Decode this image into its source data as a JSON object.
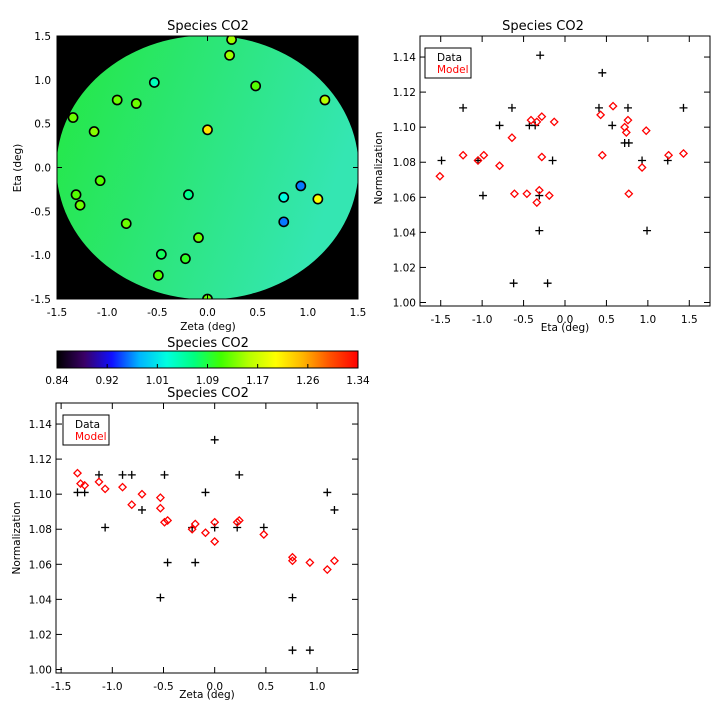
{
  "chart_data": [
    {
      "id": "map",
      "type": "scatter",
      "title": "Species CO2",
      "xlabel": "Zeta (deg)",
      "ylabel": "Eta (deg)",
      "xlim": [
        -1.5,
        1.5
      ],
      "ylim": [
        -1.5,
        1.5
      ],
      "xticks": [
        "-1.5",
        "-1.0",
        "-0.5",
        "0.0",
        "0.5",
        "1.0",
        "1.5"
      ],
      "yticks": [
        "-1.5",
        "-1.0",
        "-0.5",
        "0.0",
        "0.5",
        "1.0",
        "1.5"
      ],
      "background": "#000000",
      "field_colors": [
        "#24e840",
        "#2ce678",
        "#34e6b2"
      ],
      "points": [
        {
          "x": 0.24,
          "y": 1.46,
          "value": 1.15
        },
        {
          "x": 0.22,
          "y": 1.28,
          "value": 1.15
        },
        {
          "x": -0.53,
          "y": 0.97,
          "value": 1.04
        },
        {
          "x": 0.48,
          "y": 0.93,
          "value": 1.12
        },
        {
          "x": -0.9,
          "y": 0.77,
          "value": 1.13
        },
        {
          "x": -0.71,
          "y": 0.73,
          "value": 1.13
        },
        {
          "x": 1.17,
          "y": 0.77,
          "value": 1.16
        },
        {
          "x": -1.34,
          "y": 0.57,
          "value": 1.13
        },
        {
          "x": -1.13,
          "y": 0.41,
          "value": 1.14
        },
        {
          "x": 0.0,
          "y": 0.43,
          "value": 1.22
        },
        {
          "x": -1.07,
          "y": -0.15,
          "value": 1.12
        },
        {
          "x": -1.31,
          "y": -0.31,
          "value": 1.12
        },
        {
          "x": -1.27,
          "y": -0.43,
          "value": 1.13
        },
        {
          "x": -0.19,
          "y": -0.31,
          "value": 1.06
        },
        {
          "x": 0.93,
          "y": -0.21,
          "value": 0.96
        },
        {
          "x": 0.76,
          "y": -0.34,
          "value": 1.02
        },
        {
          "x": 1.1,
          "y": -0.36,
          "value": 1.2
        },
        {
          "x": -0.81,
          "y": -0.64,
          "value": 1.13
        },
        {
          "x": 0.76,
          "y": -0.62,
          "value": 0.96
        },
        {
          "x": -0.09,
          "y": -0.8,
          "value": 1.13
        },
        {
          "x": -0.46,
          "y": -0.99,
          "value": 1.08
        },
        {
          "x": -0.22,
          "y": -1.04,
          "value": 1.1
        },
        {
          "x": -0.49,
          "y": -1.23,
          "value": 1.12
        },
        {
          "x": 0.0,
          "y": -1.5,
          "value": 1.13
        }
      ]
    },
    {
      "id": "colorbar",
      "type": "colorbar",
      "title": "Species CO2",
      "ticks": [
        "0.84",
        "0.92",
        "1.01",
        "1.09",
        "1.17",
        "1.26",
        "1.34"
      ],
      "colors": [
        "#000000",
        "#3a0066",
        "#1010ff",
        "#00b4ff",
        "#00ffe0",
        "#00ff80",
        "#40ff00",
        "#b4ff00",
        "#ffff00",
        "#ffb400",
        "#ff5000",
        "#ff0000"
      ]
    },
    {
      "id": "eta",
      "type": "scatter",
      "title": "Species CO2",
      "xlabel": "Eta (deg)",
      "ylabel": "Normalization",
      "xlim": [
        -1.75,
        1.75
      ],
      "ylim": [
        0.998,
        1.152
      ],
      "xticks": [
        -1.5,
        -1.0,
        -0.5,
        0.0,
        0.5,
        1.0,
        1.5
      ],
      "xtick_labels": [
        "-1.5",
        "-1.0",
        "-0.5",
        "0.0",
        "0.5",
        "1.0",
        "1.5"
      ],
      "yticks": [
        1.0,
        1.02,
        1.04,
        1.06,
        1.08,
        1.1,
        1.12,
        1.14
      ],
      "ytick_labels": [
        "1.00",
        "1.02",
        "1.04",
        "1.06",
        "1.08",
        "1.10",
        "1.12",
        "1.14"
      ],
      "legend": [
        {
          "label": "Data",
          "color": "#000000"
        },
        {
          "label": "Model",
          "color": "#ff0000"
        }
      ],
      "series": [
        {
          "name": "Data",
          "marker": "plus",
          "color": "#000000",
          "points": [
            [
              -1.49,
              1.081
            ],
            [
              -1.23,
              1.111
            ],
            [
              -1.05,
              1.081
            ],
            [
              -0.99,
              1.061
            ],
            [
              -0.79,
              1.101
            ],
            [
              -0.64,
              1.111
            ],
            [
              -0.62,
              1.011
            ],
            [
              -0.43,
              1.101
            ],
            [
              -0.36,
              1.101
            ],
            [
              -0.31,
              1.061
            ],
            [
              -0.3,
              1.141
            ],
            [
              -0.31,
              1.041
            ],
            [
              -0.21,
              1.011
            ],
            [
              -0.15,
              1.081
            ],
            [
              0.41,
              1.111
            ],
            [
              0.45,
              1.131
            ],
            [
              0.57,
              1.101
            ],
            [
              0.76,
              1.111
            ],
            [
              0.72,
              1.091
            ],
            [
              0.77,
              1.091
            ],
            [
              0.93,
              1.081
            ],
            [
              0.99,
              1.041
            ],
            [
              1.24,
              1.081
            ],
            [
              1.43,
              1.111
            ]
          ]
        },
        {
          "name": "Model",
          "marker": "diamond",
          "color": "#ff0000",
          "points": [
            [
              -1.51,
              1.072
            ],
            [
              -1.23,
              1.084
            ],
            [
              -1.05,
              1.081
            ],
            [
              -0.98,
              1.084
            ],
            [
              -0.79,
              1.078
            ],
            [
              -0.64,
              1.094
            ],
            [
              -0.61,
              1.062
            ],
            [
              -0.46,
              1.062
            ],
            [
              -0.41,
              1.104
            ],
            [
              -0.34,
              1.103
            ],
            [
              -0.34,
              1.057
            ],
            [
              -0.31,
              1.064
            ],
            [
              -0.28,
              1.106
            ],
            [
              -0.28,
              1.083
            ],
            [
              -0.19,
              1.061
            ],
            [
              -0.13,
              1.103
            ],
            [
              0.43,
              1.107
            ],
            [
              0.45,
              1.084
            ],
            [
              0.58,
              1.112
            ],
            [
              0.72,
              1.1
            ],
            [
              0.76,
              1.104
            ],
            [
              0.74,
              1.097
            ],
            [
              0.77,
              1.062
            ],
            [
              0.93,
              1.077
            ],
            [
              0.98,
              1.098
            ],
            [
              1.25,
              1.084
            ],
            [
              1.43,
              1.085
            ]
          ]
        }
      ]
    },
    {
      "id": "zeta",
      "type": "scatter",
      "title": "Species CO2",
      "xlabel": "Zeta (deg)",
      "ylabel": "Normalization",
      "xlim": [
        -1.55,
        1.4
      ],
      "ylim": [
        0.998,
        1.152
      ],
      "xticks": [
        -1.5,
        -1.0,
        -0.5,
        0.0,
        0.5,
        1.0
      ],
      "xtick_labels": [
        "-1.5",
        "-1.0",
        "-0.5",
        "0.0",
        "0.5",
        "1.0"
      ],
      "yticks": [
        1.0,
        1.02,
        1.04,
        1.06,
        1.08,
        1.1,
        1.12,
        1.14
      ],
      "ytick_labels": [
        "1.00",
        "1.02",
        "1.04",
        "1.06",
        "1.08",
        "1.10",
        "1.12",
        "1.14"
      ],
      "legend": [
        {
          "label": "Data",
          "color": "#000000"
        },
        {
          "label": "Model",
          "color": "#ff0000"
        }
      ],
      "series": [
        {
          "name": "Data",
          "marker": "plus",
          "color": "#000000",
          "points": [
            [
              -1.34,
              1.101
            ],
            [
              -1.27,
              1.101
            ],
            [
              -1.13,
              1.111
            ],
            [
              -1.07,
              1.081
            ],
            [
              -0.9,
              1.111
            ],
            [
              -0.81,
              1.111
            ],
            [
              -0.71,
              1.091
            ],
            [
              -0.53,
              1.041
            ],
            [
              -0.49,
              1.111
            ],
            [
              -0.46,
              1.061
            ],
            [
              -0.22,
              1.081
            ],
            [
              -0.19,
              1.061
            ],
            [
              -0.09,
              1.101
            ],
            [
              0.0,
              1.131
            ],
            [
              0.0,
              1.081
            ],
            [
              0.22,
              1.081
            ],
            [
              0.24,
              1.111
            ],
            [
              0.48,
              1.081
            ],
            [
              0.76,
              1.041
            ],
            [
              0.76,
              1.011
            ],
            [
              0.93,
              1.011
            ],
            [
              1.1,
              1.101
            ],
            [
              1.17,
              1.091
            ]
          ]
        },
        {
          "name": "Model",
          "marker": "diamond",
          "color": "#ff0000",
          "points": [
            [
              -1.34,
              1.112
            ],
            [
              -1.31,
              1.106
            ],
            [
              -1.27,
              1.105
            ],
            [
              -1.13,
              1.107
            ],
            [
              -1.07,
              1.103
            ],
            [
              -0.9,
              1.104
            ],
            [
              -0.81,
              1.094
            ],
            [
              -0.71,
              1.1
            ],
            [
              -0.53,
              1.098
            ],
            [
              -0.49,
              1.084
            ],
            [
              -0.46,
              1.085
            ],
            [
              -0.53,
              1.092
            ],
            [
              -0.22,
              1.08
            ],
            [
              -0.19,
              1.083
            ],
            [
              -0.09,
              1.078
            ],
            [
              0.0,
              1.084
            ],
            [
              0.0,
              1.073
            ],
            [
              0.22,
              1.084
            ],
            [
              0.24,
              1.085
            ],
            [
              0.48,
              1.077
            ],
            [
              0.76,
              1.062
            ],
            [
              0.76,
              1.064
            ],
            [
              0.93,
              1.061
            ],
            [
              1.1,
              1.057
            ],
            [
              1.17,
              1.062
            ]
          ]
        }
      ]
    }
  ]
}
